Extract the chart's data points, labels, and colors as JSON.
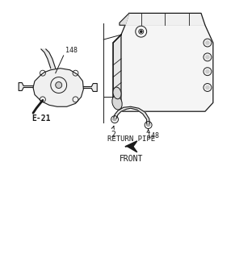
{
  "bg_color": "#ffffff",
  "line_color": "#1a1a1a",
  "label_148_1": "148",
  "label_148_2": "148",
  "label_2": "2",
  "label_e21": "E-21",
  "label_return_pipe": "RETURN PIPE",
  "label_front": "FRONT",
  "fig_width": 2.91,
  "fig_height": 3.2,
  "dpi": 100
}
